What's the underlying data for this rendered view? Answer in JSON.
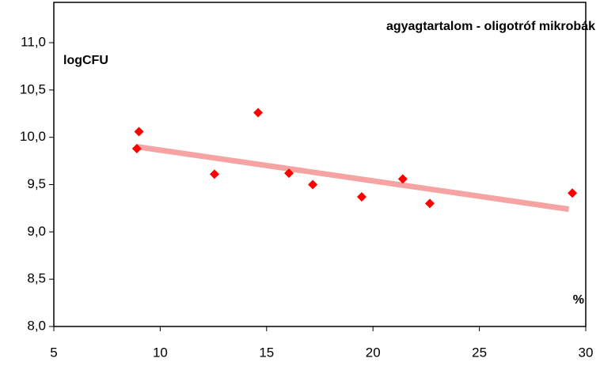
{
  "chart_data": {
    "type": "scatter",
    "title": "agyagtartalom - oligotróf mikrobák",
    "y_label": "logCFU",
    "x_label": "%",
    "xlim": [
      5,
      30
    ],
    "xticks": [
      5,
      10,
      15,
      20,
      25,
      30
    ],
    "ylim": [
      8,
      11
    ],
    "yticks": [
      {
        "value": 8,
        "label": "8,0"
      },
      {
        "value": 8.5,
        "label": "8,5"
      },
      {
        "value": 9,
        "label": "9,0"
      },
      {
        "value": 9.5,
        "label": "9,5"
      },
      {
        "value": 10,
        "label": "10,0"
      },
      {
        "value": 10.5,
        "label": "10,5"
      },
      {
        "value": 11,
        "label": "11,0"
      }
    ],
    "color": "#ff0000",
    "x": [
      8.9,
      9.0,
      12.55,
      14.6,
      16.05,
      17.17,
      19.47,
      21.4,
      22.67,
      29.37
    ],
    "values": [
      9.88,
      10.06,
      9.61,
      10.26,
      9.62,
      9.5,
      9.37,
      9.56,
      9.3,
      9.41
    ],
    "trendline": {
      "x": [
        8.9,
        29.2
      ],
      "values": [
        9.9,
        9.24
      ],
      "color": "#f5a3a3"
    }
  }
}
